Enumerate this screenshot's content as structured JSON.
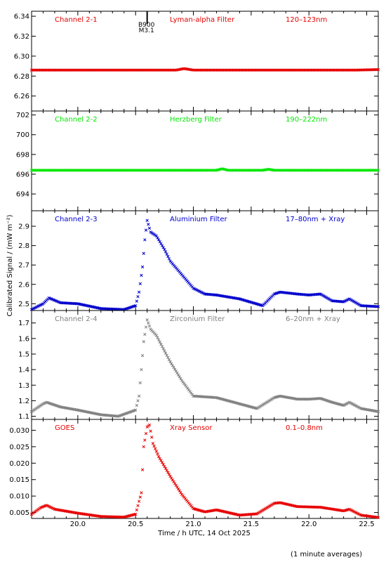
{
  "xlabel": "Time / h UTC, 14 Oct 2025",
  "ylabel": "Calibrated Signal / (mW m⁻²)",
  "footnote": "(1 minute averages)",
  "x_ticks": [
    "20.0",
    "20.5",
    "21.0",
    "21.5",
    "22.0",
    "22.5"
  ],
  "colors": {
    "red": "#e60000",
    "green": "#00e600",
    "blue": "#0000cc",
    "gray": "#808080"
  },
  "flare_marker": {
    "x": 20.6,
    "line1": "B900",
    "line2": "M3.1"
  },
  "chart_data": [
    {
      "type": "scatter",
      "channel": "Channel 2-1",
      "filter": "Lyman-alpha Filter",
      "band": "120–123nm",
      "color": "#e60000",
      "xlim": [
        19.6,
        22.6
      ],
      "ylim": [
        6.245,
        6.345
      ],
      "yticks": [
        6.26,
        6.28,
        6.3,
        6.32,
        6.34
      ],
      "ytick_labels": [
        "6.26",
        "6.28",
        "6.30",
        "6.32",
        "6.34"
      ],
      "x": [
        19.6,
        20.5,
        20.85,
        20.92,
        21.0,
        22.4,
        22.6
      ],
      "y": [
        6.286,
        6.286,
        6.286,
        6.2875,
        6.286,
        6.286,
        6.2865
      ]
    },
    {
      "type": "scatter",
      "channel": "Channel 2-2",
      "filter": "Herzberg Filter",
      "band": "190–222nm",
      "color": "#00e600",
      "xlim": [
        19.6,
        22.6
      ],
      "ylim": [
        692.3,
        702.4
      ],
      "yticks": [
        694,
        696,
        698,
        700,
        702
      ],
      "ytick_labels": [
        "694",
        "696",
        "698",
        "700",
        "702"
      ],
      "x": [
        19.6,
        21.2,
        21.25,
        21.3,
        21.6,
        21.65,
        21.7,
        22.6
      ],
      "y": [
        696.4,
        696.4,
        696.55,
        696.4,
        696.4,
        696.5,
        696.4,
        696.4
      ]
    },
    {
      "type": "scatter",
      "channel": "Channel 2-3",
      "filter": "Aluminium Filter",
      "band": "17–80nm + Xray",
      "color": "#0000cc",
      "xlim": [
        19.6,
        22.6
      ],
      "ylim": [
        2.465,
        2.98
      ],
      "yticks": [
        2.5,
        2.6,
        2.7,
        2.8,
        2.9
      ],
      "ytick_labels": [
        "2.5",
        "2.6",
        "2.7",
        "2.8",
        "2.9"
      ],
      "x": [
        19.6,
        19.7,
        19.75,
        19.85,
        20.0,
        20.2,
        20.4,
        20.5,
        20.53,
        20.56,
        20.58,
        20.6,
        20.63,
        20.68,
        20.75,
        20.8,
        20.9,
        21.0,
        21.1,
        21.2,
        21.4,
        21.6,
        21.7,
        21.75,
        21.9,
        22.0,
        22.1,
        22.2,
        22.3,
        22.35,
        22.45,
        22.6
      ],
      "y": [
        2.47,
        2.5,
        2.53,
        2.505,
        2.5,
        2.475,
        2.47,
        2.49,
        2.56,
        2.69,
        2.83,
        2.93,
        2.87,
        2.85,
        2.78,
        2.72,
        2.65,
        2.58,
        2.55,
        2.545,
        2.525,
        2.49,
        2.55,
        2.56,
        2.55,
        2.545,
        2.55,
        2.515,
        2.51,
        2.525,
        2.49,
        2.485
      ]
    },
    {
      "type": "scatter",
      "channel": "Channel 2-4",
      "filter": "Zirconium Filter",
      "band": "6–20nm + Xray",
      "color": "#808080",
      "xlim": [
        19.6,
        22.6
      ],
      "ylim": [
        1.08,
        1.78
      ],
      "yticks": [
        1.1,
        1.2,
        1.3,
        1.4,
        1.5,
        1.6,
        1.7
      ],
      "ytick_labels": [
        "1.1",
        "1.2",
        "1.3",
        "1.4",
        "1.5",
        "1.6",
        "1.7"
      ],
      "x": [
        19.6,
        19.7,
        19.73,
        19.85,
        20.0,
        20.2,
        20.35,
        20.5,
        20.53,
        20.55,
        20.57,
        20.6,
        20.63,
        20.68,
        20.75,
        20.8,
        20.9,
        21.0,
        21.2,
        21.4,
        21.55,
        21.7,
        21.75,
        21.9,
        22.0,
        22.1,
        22.2,
        22.3,
        22.35,
        22.45,
        22.6
      ],
      "y": [
        1.13,
        1.18,
        1.19,
        1.16,
        1.14,
        1.11,
        1.1,
        1.14,
        1.23,
        1.4,
        1.58,
        1.72,
        1.66,
        1.62,
        1.52,
        1.45,
        1.33,
        1.23,
        1.22,
        1.18,
        1.15,
        1.22,
        1.23,
        1.21,
        1.21,
        1.215,
        1.19,
        1.17,
        1.19,
        1.15,
        1.13
      ]
    },
    {
      "type": "scatter",
      "channel": "GOES",
      "filter": "Xray Sensor",
      "band": "0.1–0.8nm",
      "color": "#e60000",
      "xlim": [
        19.6,
        22.6
      ],
      "ylim": [
        0.0032,
        0.0333
      ],
      "yticks": [
        0.005,
        0.01,
        0.015,
        0.02,
        0.025,
        0.03
      ],
      "ytick_labels": [
        "0.005",
        "0.010",
        "0.015",
        "0.020",
        "0.025",
        "0.030"
      ],
      "x": [
        19.6,
        19.68,
        19.73,
        19.8,
        20.0,
        20.2,
        20.4,
        20.5,
        20.55,
        20.57,
        20.6,
        20.62,
        20.65,
        20.7,
        20.75,
        20.8,
        20.9,
        21.0,
        21.1,
        21.2,
        21.4,
        21.55,
        21.7,
        21.75,
        21.9,
        22.1,
        22.3,
        22.35,
        22.45,
        22.6
      ],
      "y": [
        0.0045,
        0.0065,
        0.0072,
        0.006,
        0.0048,
        0.0038,
        0.0036,
        0.0045,
        0.011,
        0.025,
        0.031,
        0.0316,
        0.026,
        0.022,
        0.019,
        0.016,
        0.0105,
        0.0062,
        0.0052,
        0.0058,
        0.0042,
        0.0046,
        0.0078,
        0.008,
        0.0068,
        0.0066,
        0.0055,
        0.006,
        0.0042,
        0.0035
      ]
    }
  ]
}
